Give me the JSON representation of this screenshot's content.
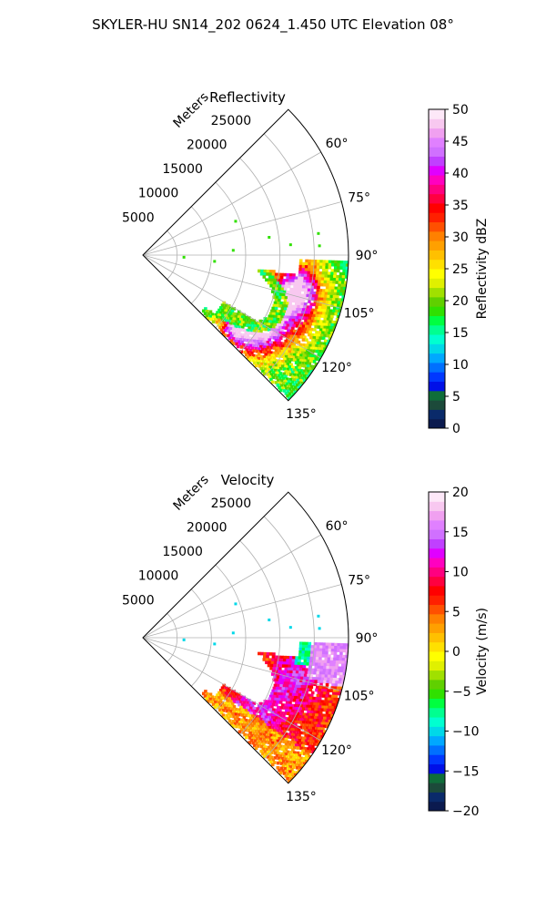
{
  "figure_title": "SKYLER-HU  SN14_202  0624_1.450 UTC Elevation 08°",
  "chart_data": [
    {
      "type": "polar-sector",
      "title": "Reflectivity",
      "range_label": "Meters",
      "range_ticks": [
        5000,
        10000,
        15000,
        20000,
        25000
      ],
      "azimuth_ticks": [
        "60°",
        "75°",
        "90°",
        "105°",
        "120°",
        "135°"
      ],
      "azimuth_range_deg": [
        45,
        135
      ],
      "max_range_m": 30000,
      "grid": true,
      "colorbar": {
        "label": "Reflectivity dBZ",
        "min": 0,
        "max": 50,
        "ticks": [
          0,
          5,
          10,
          15,
          20,
          25,
          30,
          35,
          40,
          45,
          50
        ],
        "colors": [
          "#0b1a4f",
          "#0a2a6a",
          "#1c4a3a",
          "#0f6e3a",
          "#0010e8",
          "#0038ff",
          "#0070ff",
          "#00a8ff",
          "#00d8e8",
          "#00ffd0",
          "#00ff90",
          "#00ff40",
          "#30e000",
          "#60d000",
          "#a0e000",
          "#e0f000",
          "#ffff00",
          "#ffe000",
          "#ffc000",
          "#ffa000",
          "#ff8000",
          "#ff5000",
          "#ff2000",
          "#ff0000",
          "#ff0040",
          "#ff0080",
          "#ff00c0",
          "#e000ff",
          "#c040ff",
          "#d070ff",
          "#e080ff",
          "#f0a0f0",
          "#f8c8f0",
          "#fde8f8"
        ]
      }
    },
    {
      "type": "polar-sector",
      "title": "Velocity",
      "range_label": "Meters",
      "range_ticks": [
        5000,
        10000,
        15000,
        20000,
        25000
      ],
      "azimuth_ticks": [
        "60°",
        "75°",
        "90°",
        "105°",
        "120°",
        "135°"
      ],
      "azimuth_range_deg": [
        45,
        135
      ],
      "max_range_m": 30000,
      "grid": true,
      "colorbar": {
        "label": "Velocity (m/s)",
        "min": -20,
        "max": 20,
        "ticks": [
          -20,
          -15,
          -10,
          -5,
          0,
          5,
          10,
          15,
          20
        ],
        "colors": [
          "#0b1a4f",
          "#0a2a6a",
          "#1c4a3a",
          "#0f6e3a",
          "#0010e8",
          "#0038ff",
          "#0070ff",
          "#00a8ff",
          "#00d8e8",
          "#00ffd0",
          "#00ff90",
          "#00ff40",
          "#30e000",
          "#60d000",
          "#a0e000",
          "#e0f000",
          "#ffff00",
          "#ffe000",
          "#ffc000",
          "#ffa000",
          "#ff8000",
          "#ff5000",
          "#ff2000",
          "#ff0000",
          "#ff0040",
          "#ff0080",
          "#ff00c0",
          "#e000ff",
          "#c040ff",
          "#d070ff",
          "#e080ff",
          "#f0a0f0",
          "#f8c8f0",
          "#fde8f8"
        ]
      }
    }
  ]
}
